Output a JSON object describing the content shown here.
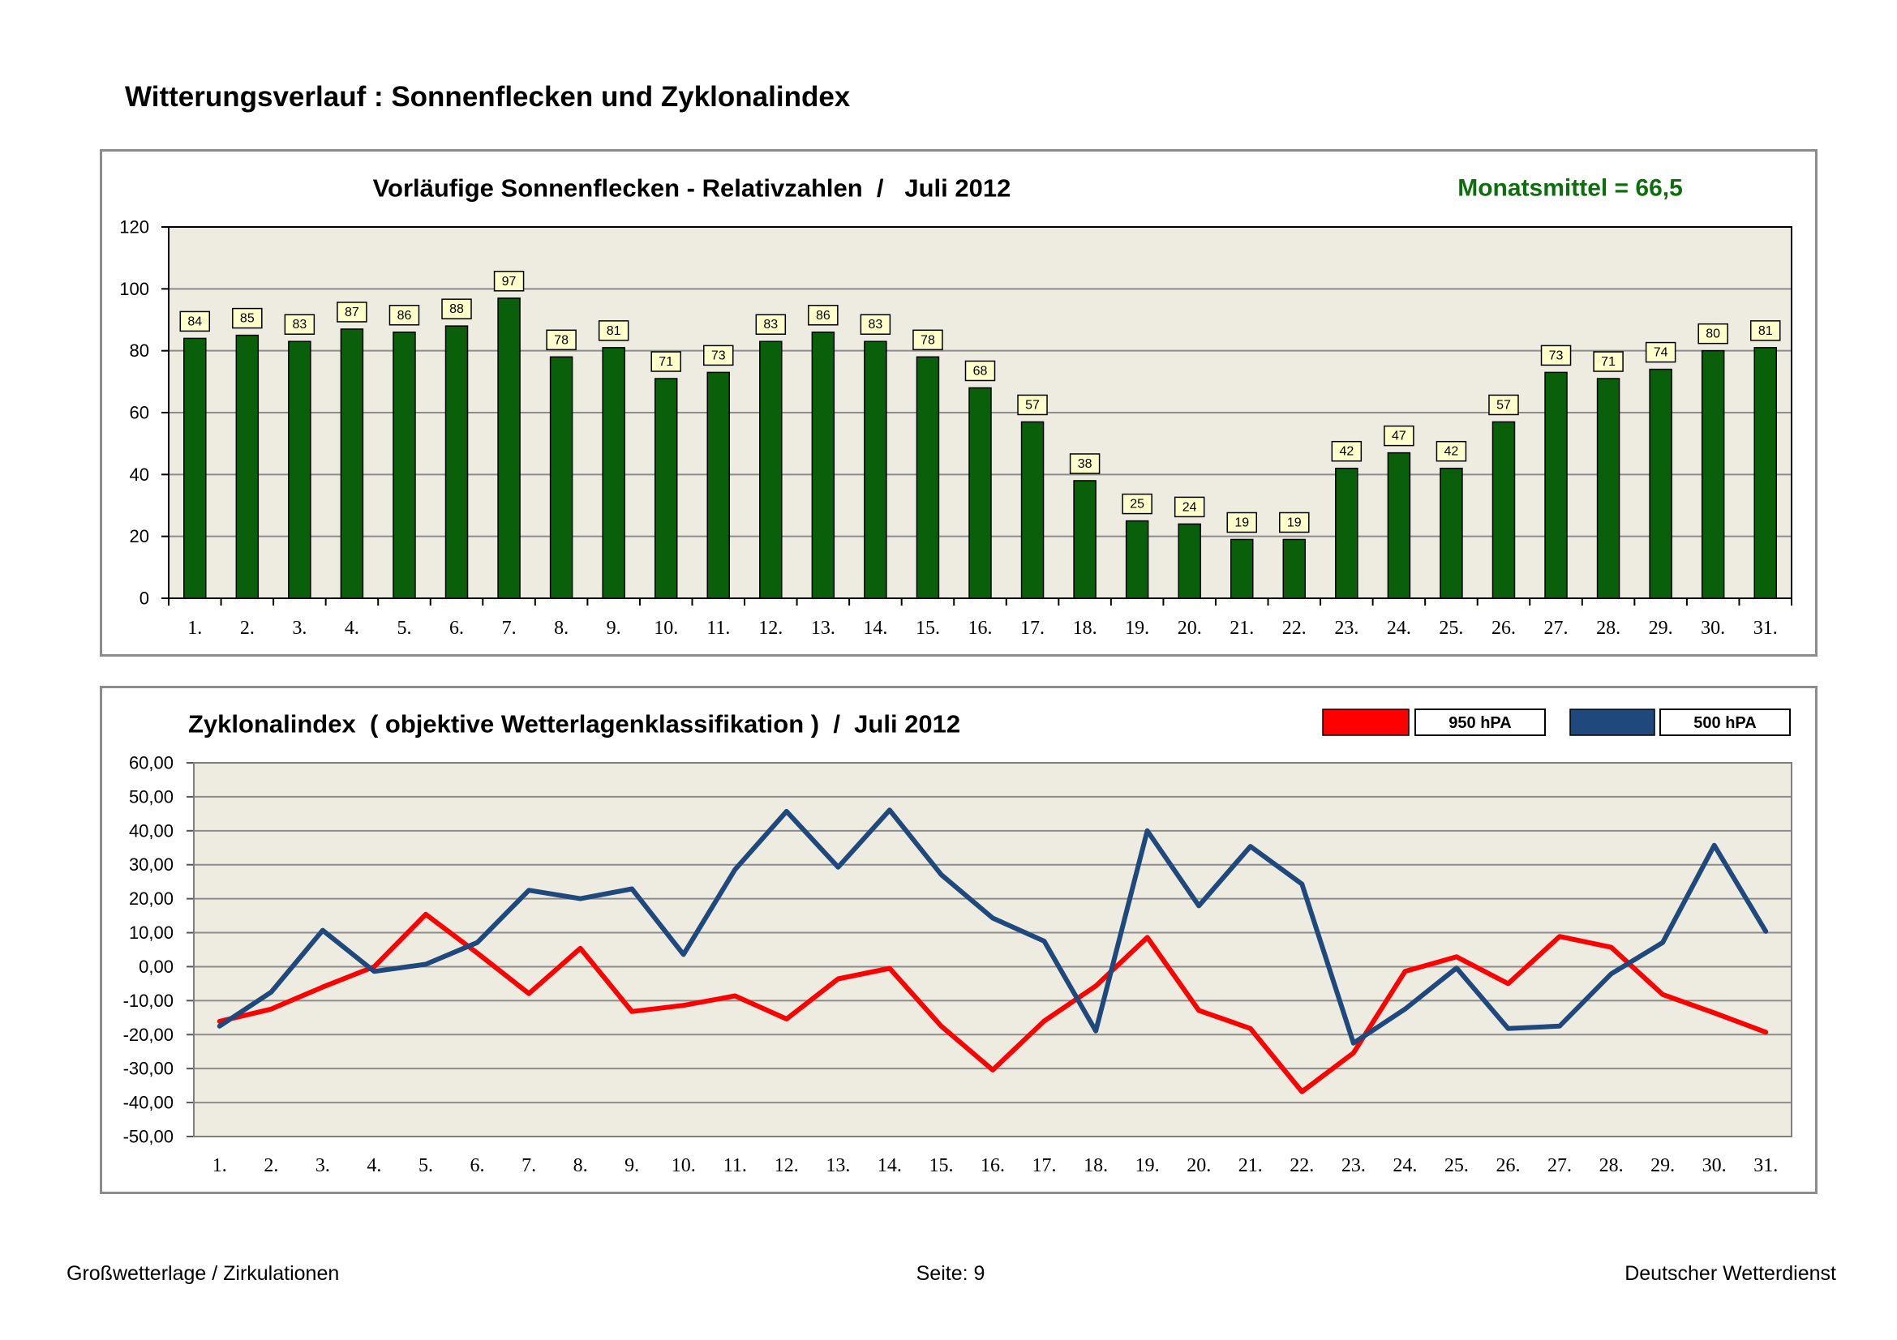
{
  "page": {
    "title": "Witterungsverlauf : Sonnenflecken und Zyklonalindex"
  },
  "footer": {
    "left": "Großwetterlage / Zirkulationen",
    "center": "Seite: 9",
    "right": "Deutscher Wetterdienst"
  },
  "colors": {
    "frame_border": "#8C8C8C",
    "plot_background": "#EEECE1",
    "gridline": "#8C8C8C",
    "bar_fill": "#0A5F0A",
    "mean_text": "#0E6E0E",
    "data_label_fill": "#FFFFCC"
  },
  "chart_data": [
    {
      "type": "bar",
      "title": "Vorläufige Sonnenflecken - Relativzahlen  /   Juli 2012",
      "annotation": "Monatsmittel = 66,5",
      "categories": [
        "1.",
        "2.",
        "3.",
        "4.",
        "5.",
        "6.",
        "7.",
        "8.",
        "9.",
        "10.",
        "11.",
        "12.",
        "13.",
        "14.",
        "15.",
        "16.",
        "17.",
        "18.",
        "19.",
        "20.",
        "21.",
        "22.",
        "23.",
        "24.",
        "25.",
        "26.",
        "27.",
        "28.",
        "29.",
        "30.",
        "31."
      ],
      "values": [
        84,
        85,
        83,
        87,
        86,
        88,
        97,
        78,
        81,
        71,
        73,
        83,
        86,
        83,
        78,
        68,
        57,
        38,
        25,
        24,
        19,
        19,
        42,
        47,
        42,
        57,
        73,
        71,
        74,
        80,
        81
      ],
      "ylim": [
        0,
        120
      ],
      "ystep": 20,
      "yticks": [
        "0",
        "20",
        "40",
        "60",
        "80",
        "100",
        "120"
      ],
      "grid": true
    },
    {
      "type": "line",
      "title": "Zyklonalindex  ( objektive Wetterlagenklassifikation )  /  Juli 2012",
      "categories": [
        "1.",
        "2.",
        "3.",
        "4.",
        "5.",
        "6.",
        "7.",
        "8.",
        "9.",
        "10.",
        "11.",
        "12.",
        "13.",
        "14.",
        "15.",
        "16.",
        "17.",
        "18.",
        "19.",
        "20.",
        "21.",
        "22.",
        "23.",
        "24.",
        "25.",
        "26.",
        "27.",
        "28.",
        "29.",
        "30.",
        "31."
      ],
      "series": [
        {
          "name": "950 hPA",
          "color": "#FF0000",
          "values": [
            -16.1,
            -12.5,
            -6.0,
            0.0,
            15.4,
            4.0,
            -7.9,
            5.4,
            -13.2,
            -11.4,
            -8.6,
            -15.4,
            -3.6,
            -0.5,
            -17.5,
            -30.4,
            -16.0,
            -5.7,
            8.6,
            -12.9,
            -18.2,
            -36.8,
            -25.4,
            -1.4,
            2.9,
            -5.0,
            8.9,
            5.7,
            -8.2,
            -13.6,
            -19.3
          ]
        },
        {
          "name": "500 hPA",
          "color": "#1F497D",
          "values": [
            -17.5,
            -7.5,
            10.7,
            -1.4,
            0.7,
            7.1,
            22.5,
            20.0,
            22.9,
            3.6,
            28.6,
            45.7,
            29.3,
            46.1,
            27.1,
            14.3,
            7.5,
            -18.9,
            40.0,
            17.9,
            35.4,
            24.3,
            -22.5,
            -12.5,
            -0.4,
            -18.2,
            -17.5,
            -2.1,
            7.1,
            35.7,
            10.4
          ]
        }
      ],
      "ylim": [
        -50,
        60
      ],
      "ystep": 10,
      "yticks": [
        "-50,00",
        "-40,00",
        "-30,00",
        "-20,00",
        "-10,00",
        "0,00",
        "10,00",
        "20,00",
        "30,00",
        "40,00",
        "50,00",
        "60,00"
      ],
      "grid": true
    }
  ]
}
